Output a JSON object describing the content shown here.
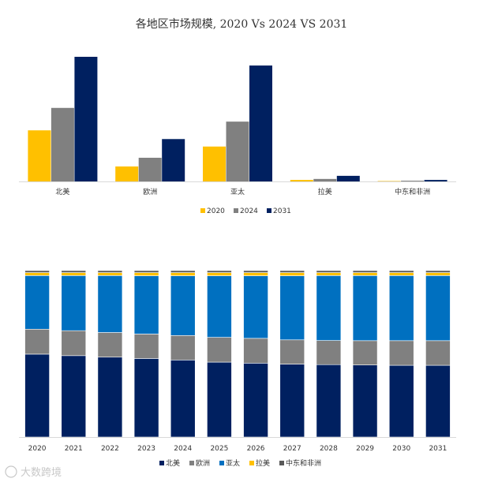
{
  "title": "各地区市场规模, 2020 Vs 2024 VS 2031",
  "watermark": "大数跨境",
  "colors": {
    "2020": "#FFC000",
    "2024": "#808080",
    "2031": "#002060",
    "北美": "#002060",
    "欧洲": "#808080",
    "亚太": "#0070C0",
    "拉美": "#FFC000",
    "中东和非洲": "#595959",
    "axis": "#d9d9d9"
  },
  "chart_data": [
    {
      "type": "bar",
      "title": "各地区市场规模, 2020 Vs 2024 VS 2031",
      "categories": [
        "北美",
        "欧洲",
        "亚太",
        "拉美",
        "中东和非洲"
      ],
      "series": [
        {
          "name": "2020",
          "values": [
            41,
            12,
            28,
            1.2,
            0.3
          ]
        },
        {
          "name": "2024",
          "values": [
            59,
            19,
            48,
            2.0,
            0.6
          ]
        },
        {
          "name": "2031",
          "values": [
            100,
            34,
            93,
            4.5,
            1.2
          ]
        }
      ],
      "ylim": [
        0,
        100
      ],
      "legend": "bottom-center",
      "grid": false
    },
    {
      "type": "bar",
      "stacked": true,
      "percent": true,
      "categories": [
        "2020",
        "2021",
        "2022",
        "2023",
        "2024",
        "2025",
        "2026",
        "2027",
        "2028",
        "2029",
        "2030",
        "2031"
      ],
      "series": [
        {
          "name": "北美",
          "values": [
            49.8,
            48.9,
            48.0,
            47.2,
            46.3,
            45.0,
            44.4,
            43.8,
            43.5,
            43.3,
            43.1,
            43.1
          ]
        },
        {
          "name": "欧洲",
          "values": [
            15.0,
            15.0,
            14.8,
            14.7,
            14.7,
            14.9,
            14.9,
            14.6,
            14.5,
            14.6,
            14.8,
            14.8
          ]
        },
        {
          "name": "亚太",
          "values": [
            32.2,
            33.1,
            34.2,
            35.0,
            35.9,
            37.0,
            37.6,
            38.5,
            39.0,
            39.1,
            39.1,
            39.1
          ]
        },
        {
          "name": "拉美",
          "values": [
            1.8,
            1.8,
            1.8,
            1.9,
            1.9,
            1.9,
            1.9,
            1.9,
            1.8,
            1.8,
            1.8,
            1.8
          ]
        },
        {
          "name": "中东和非洲",
          "values": [
            1.2,
            1.2,
            1.2,
            1.2,
            1.2,
            1.2,
            1.2,
            1.2,
            1.2,
            1.2,
            1.2,
            1.2
          ]
        }
      ],
      "ylim": [
        0,
        100
      ],
      "legend": "bottom-center",
      "grid": false
    }
  ]
}
